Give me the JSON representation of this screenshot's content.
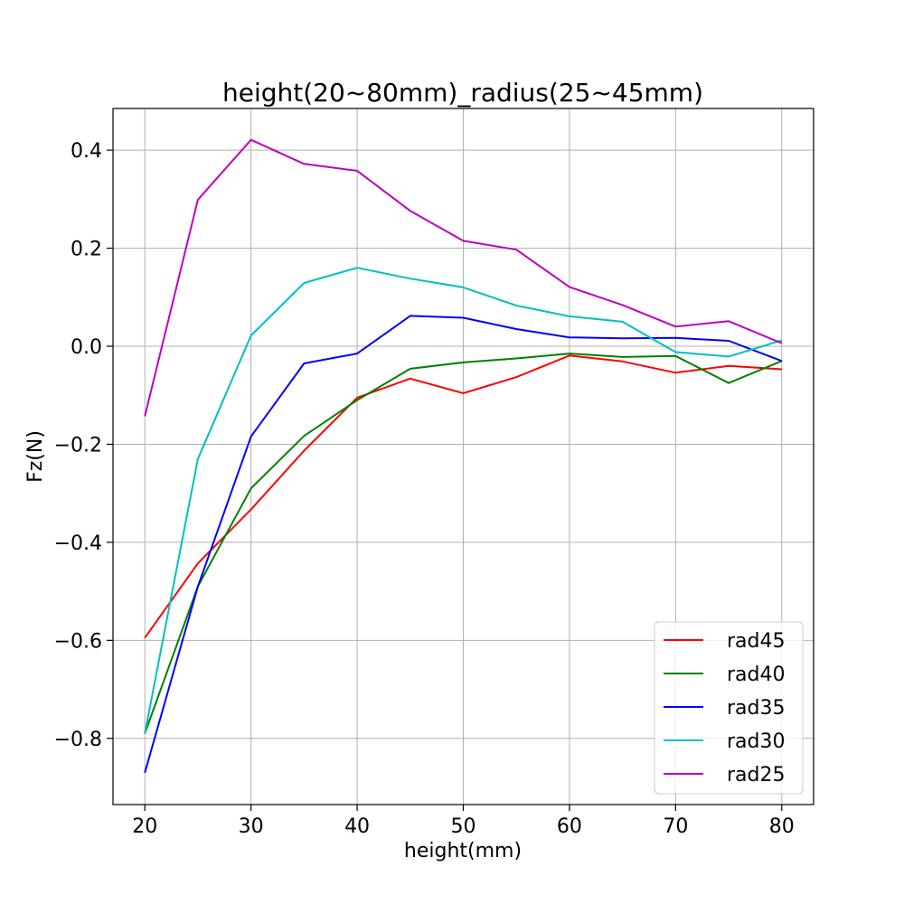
{
  "chart_data": {
    "type": "line",
    "title": "height(20~80mm)_radius(25~45mm)",
    "xlabel": "height(mm)",
    "ylabel": "Fz(N)",
    "x": [
      20,
      25,
      30,
      35,
      40,
      45,
      50,
      55,
      60,
      65,
      70,
      75,
      80
    ],
    "xlim": [
      17,
      83
    ],
    "ylim": [
      -0.935,
      0.485
    ],
    "xticks": [
      20,
      30,
      40,
      50,
      60,
      70,
      80
    ],
    "xtick_labels": [
      "20",
      "30",
      "40",
      "50",
      "60",
      "70",
      "80"
    ],
    "yticks": [
      -0.8,
      -0.6,
      -0.4,
      -0.2,
      0.0,
      0.2,
      0.4
    ],
    "ytick_labels": [
      "−0.8",
      "−0.6",
      "−0.4",
      "−0.2",
      "0.0",
      "0.2",
      "0.4"
    ],
    "grid": true,
    "legend_position": "lower-right",
    "series": [
      {
        "name": "rad45",
        "color": "#ff0000",
        "values": [
          -0.595,
          -0.443,
          -0.333,
          -0.213,
          -0.105,
          -0.066,
          -0.096,
          -0.063,
          -0.019,
          -0.031,
          -0.054,
          -0.04,
          -0.047
        ]
      },
      {
        "name": "rad40",
        "color": "#008000",
        "values": [
          -0.79,
          -0.49,
          -0.29,
          -0.183,
          -0.11,
          -0.046,
          -0.033,
          -0.025,
          -0.015,
          -0.022,
          -0.02,
          -0.075,
          -0.03
        ]
      },
      {
        "name": "rad35",
        "color": "#0000ff",
        "values": [
          -0.87,
          -0.49,
          -0.184,
          -0.035,
          -0.015,
          0.062,
          0.058,
          0.035,
          0.018,
          0.016,
          0.017,
          0.011,
          -0.03
        ]
      },
      {
        "name": "rad30",
        "color": "#00bfbf",
        "values": [
          -0.79,
          -0.23,
          0.022,
          0.129,
          0.16,
          0.138,
          0.12,
          0.083,
          0.061,
          0.05,
          -0.012,
          -0.021,
          0.012
        ]
      },
      {
        "name": "rad25",
        "color": "#bf00bf",
        "values": [
          -0.143,
          0.299,
          0.421,
          0.372,
          0.358,
          0.276,
          0.215,
          0.197,
          0.121,
          0.084,
          0.04,
          0.051,
          0.006
        ]
      }
    ]
  }
}
